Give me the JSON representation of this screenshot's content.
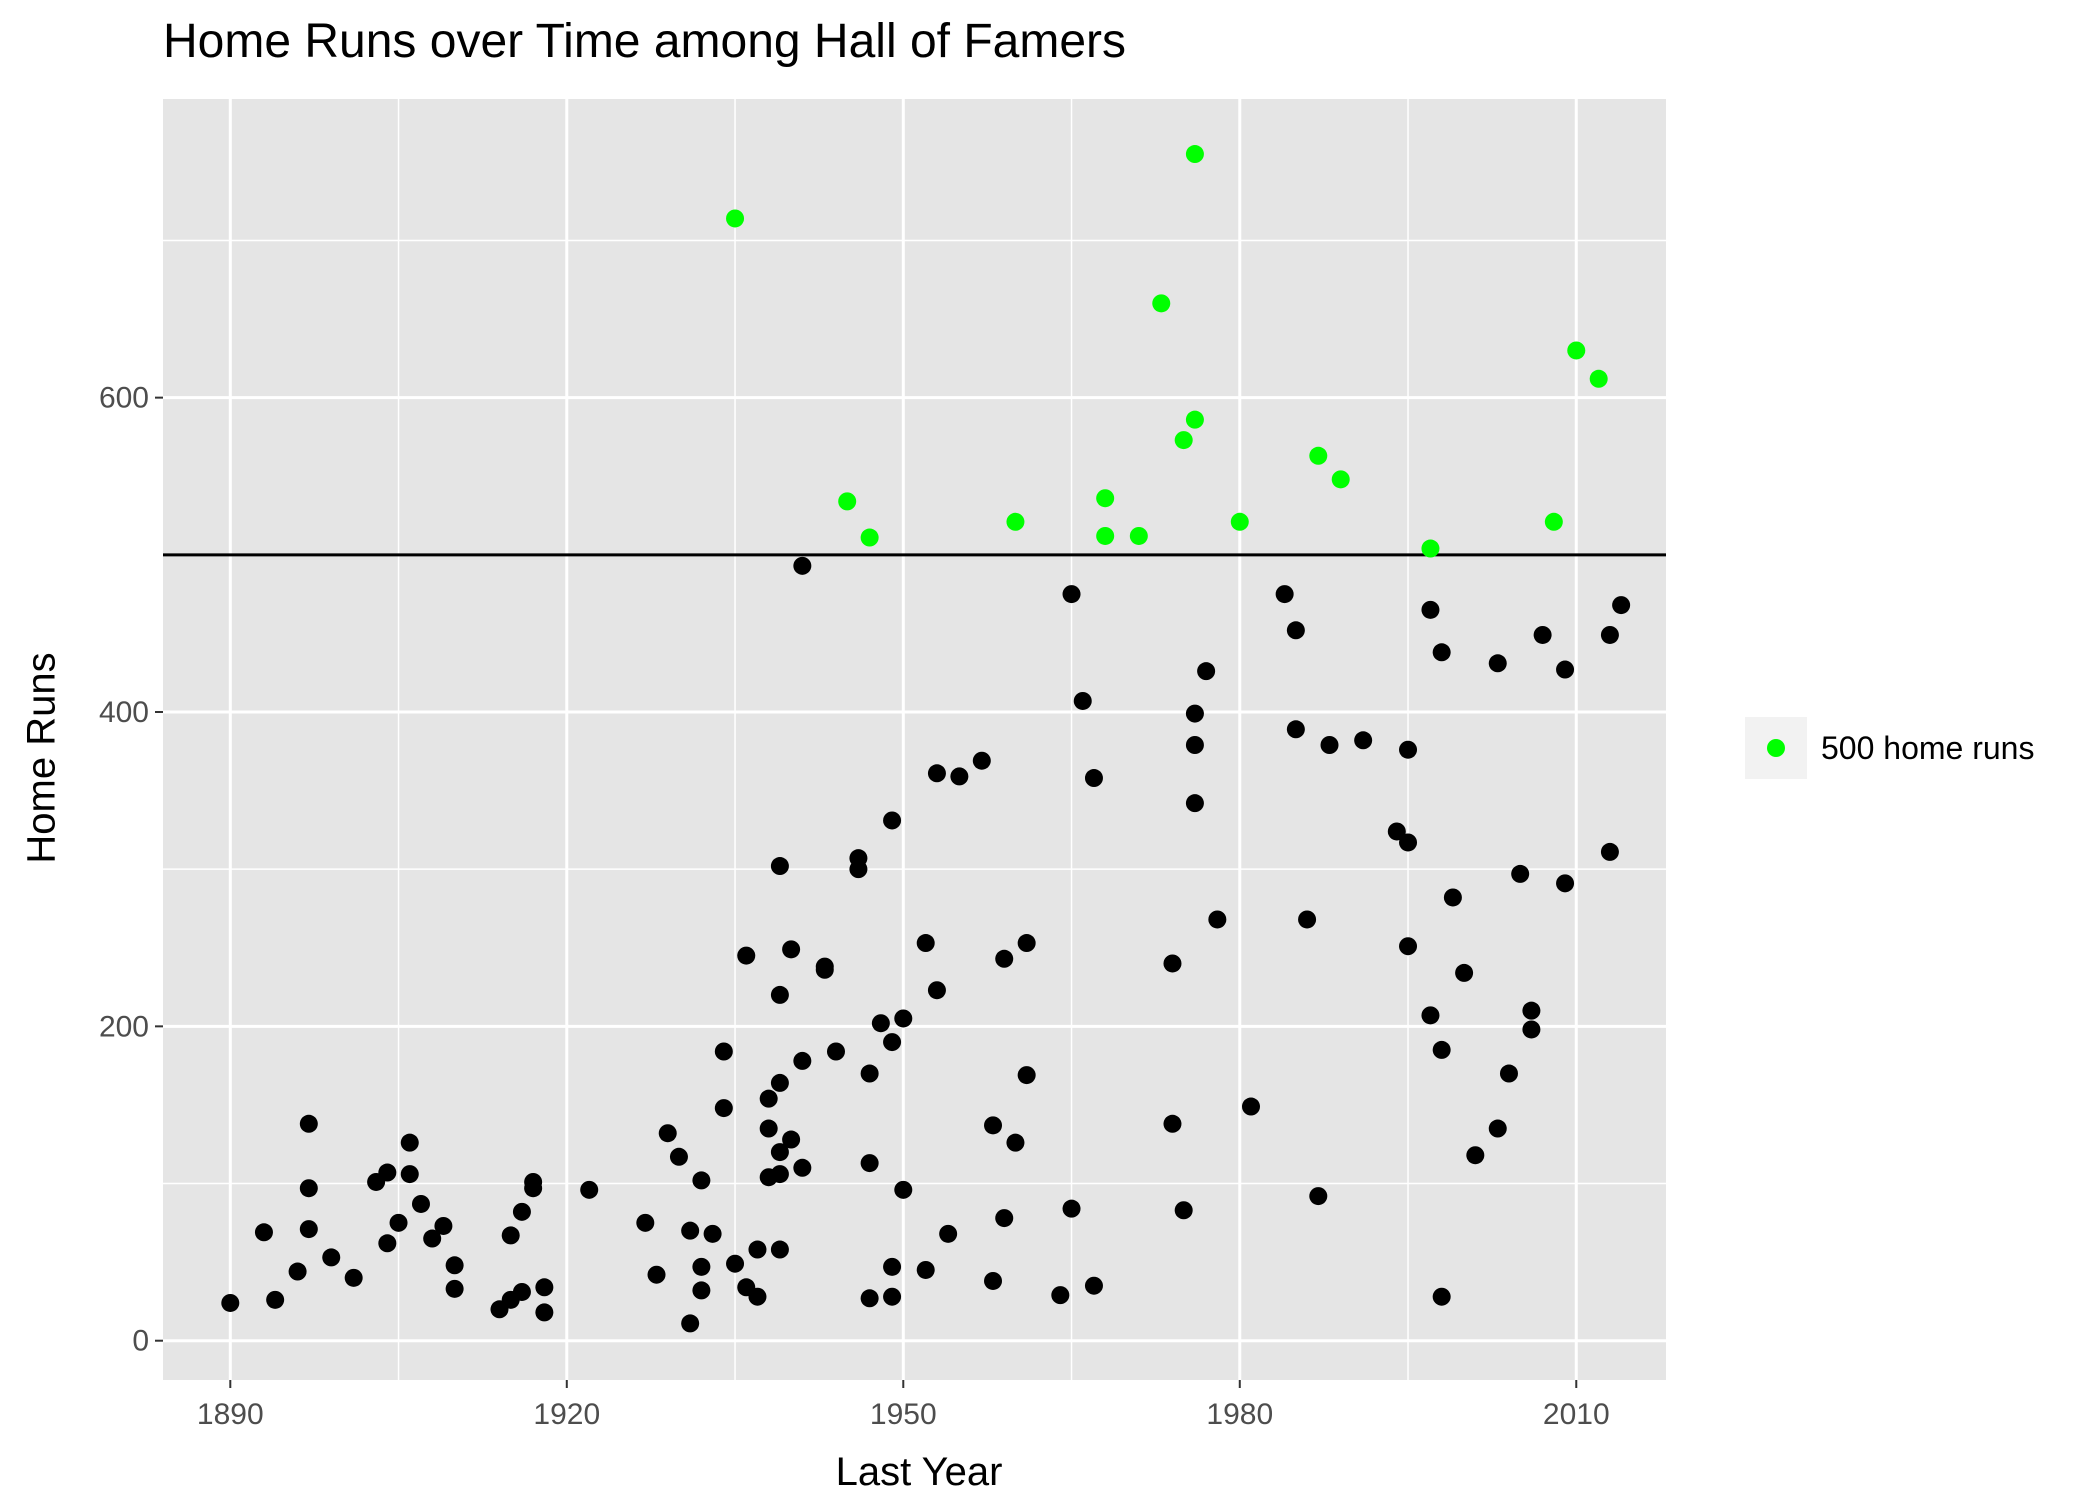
{
  "chart_data": {
    "type": "scatter",
    "title": "Home Runs over Time among Hall of Famers",
    "xlabel": "Last Year",
    "ylabel": "Home Runs",
    "xlim": [
      1884,
      2018
    ],
    "ylim": [
      -25,
      790
    ],
    "x_ticks": [
      1890,
      1920,
      1950,
      1980,
      2010
    ],
    "y_ticks": [
      0,
      200,
      400,
      600
    ],
    "grid": true,
    "reference_line": {
      "y": 500
    },
    "legend": {
      "position": "right",
      "entries": [
        {
          "label": "500 home runs",
          "color": "#00ff00"
        }
      ]
    },
    "colors": {
      "panel": "#e5e5e5",
      "grid": "#ffffff",
      "point": "#000000",
      "highlight": "#00ff00"
    },
    "series": [
      {
        "name": "500 home runs",
        "color": "#00ff00",
        "points": [
          [
            1935,
            714
          ],
          [
            1976,
            755
          ],
          [
            1973,
            660
          ],
          [
            2010,
            630
          ],
          [
            2012,
            612
          ],
          [
            1976,
            586
          ],
          [
            1975,
            573
          ],
          [
            1987,
            563
          ],
          [
            1989,
            548
          ],
          [
            1945,
            534
          ],
          [
            1968,
            536
          ],
          [
            1947,
            511
          ],
          [
            1960,
            521
          ],
          [
            1968,
            512
          ],
          [
            1971,
            512
          ],
          [
            1980,
            521
          ],
          [
            2008,
            521
          ],
          [
            1997,
            504
          ]
        ]
      },
      {
        "name": "",
        "color": "#000000",
        "points": [
          [
            1890,
            24
          ],
          [
            1893,
            69
          ],
          [
            1894,
            26
          ],
          [
            1896,
            44
          ],
          [
            1897,
            138
          ],
          [
            1897,
            97
          ],
          [
            1897,
            71
          ],
          [
            1899,
            53
          ],
          [
            1901,
            40
          ],
          [
            1903,
            101
          ],
          [
            1904,
            107
          ],
          [
            1904,
            62
          ],
          [
            1905,
            75
          ],
          [
            1906,
            126
          ],
          [
            1906,
            106
          ],
          [
            1907,
            87
          ],
          [
            1908,
            65
          ],
          [
            1909,
            73
          ],
          [
            1910,
            48
          ],
          [
            1910,
            33
          ],
          [
            1914,
            20
          ],
          [
            1915,
            26
          ],
          [
            1915,
            67
          ],
          [
            1916,
            82
          ],
          [
            1916,
            31
          ],
          [
            1917,
            101
          ],
          [
            1917,
            97
          ],
          [
            1918,
            34
          ],
          [
            1918,
            18
          ],
          [
            1922,
            96
          ],
          [
            1927,
            75
          ],
          [
            1928,
            42
          ],
          [
            1929,
            132
          ],
          [
            1930,
            117
          ],
          [
            1931,
            70
          ],
          [
            1931,
            11
          ],
          [
            1932,
            102
          ],
          [
            1932,
            47
          ],
          [
            1932,
            32
          ],
          [
            1933,
            68
          ],
          [
            1934,
            184
          ],
          [
            1934,
            148
          ],
          [
            1935,
            49
          ],
          [
            1936,
            245
          ],
          [
            1936,
            34
          ],
          [
            1937,
            58
          ],
          [
            1937,
            28
          ],
          [
            1938,
            154
          ],
          [
            1938,
            135
          ],
          [
            1938,
            104
          ],
          [
            1939,
            302
          ],
          [
            1939,
            220
          ],
          [
            1939,
            164
          ],
          [
            1939,
            120
          ],
          [
            1939,
            106
          ],
          [
            1939,
            58
          ],
          [
            1940,
            249
          ],
          [
            1940,
            128
          ],
          [
            1941,
            493
          ],
          [
            1941,
            178
          ],
          [
            1941,
            110
          ],
          [
            1943,
            238
          ],
          [
            1943,
            236
          ],
          [
            1944,
            184
          ],
          [
            1946,
            307
          ],
          [
            1946,
            300
          ],
          [
            1947,
            170
          ],
          [
            1947,
            113
          ],
          [
            1947,
            27
          ],
          [
            1948,
            202
          ],
          [
            1949,
            331
          ],
          [
            1949,
            190
          ],
          [
            1949,
            47
          ],
          [
            1949,
            28
          ],
          [
            1950,
            205
          ],
          [
            1950,
            96
          ],
          [
            1952,
            253
          ],
          [
            1952,
            45
          ],
          [
            1953,
            361
          ],
          [
            1953,
            223
          ],
          [
            1954,
            68
          ],
          [
            1955,
            359
          ],
          [
            1957,
            369
          ],
          [
            1958,
            137
          ],
          [
            1958,
            38
          ],
          [
            1959,
            243
          ],
          [
            1959,
            78
          ],
          [
            1960,
            126
          ],
          [
            1961,
            253
          ],
          [
            1961,
            169
          ],
          [
            1964,
            29
          ],
          [
            1965,
            475
          ],
          [
            1965,
            84
          ],
          [
            1966,
            407
          ],
          [
            1967,
            358
          ],
          [
            1967,
            35
          ],
          [
            1974,
            240
          ],
          [
            1974,
            138
          ],
          [
            1975,
            83
          ],
          [
            1976,
            399
          ],
          [
            1976,
            379
          ],
          [
            1976,
            342
          ],
          [
            1977,
            426
          ],
          [
            1978,
            268
          ],
          [
            1981,
            149
          ],
          [
            1984,
            475
          ],
          [
            1985,
            452
          ],
          [
            1985,
            389
          ],
          [
            1986,
            268
          ],
          [
            1987,
            92
          ],
          [
            1988,
            379
          ],
          [
            1991,
            382
          ],
          [
            1994,
            324
          ],
          [
            1995,
            376
          ],
          [
            1995,
            317
          ],
          [
            1995,
            251
          ],
          [
            1997,
            465
          ],
          [
            1997,
            207
          ],
          [
            1998,
            438
          ],
          [
            1998,
            185
          ],
          [
            1998,
            28
          ],
          [
            1999,
            282
          ],
          [
            2000,
            234
          ],
          [
            2001,
            118
          ],
          [
            2003,
            431
          ],
          [
            2003,
            135
          ],
          [
            2004,
            170
          ],
          [
            2005,
            297
          ],
          [
            2006,
            210
          ],
          [
            2006,
            198
          ],
          [
            2007,
            449
          ],
          [
            2009,
            427
          ],
          [
            2009,
            291
          ],
          [
            2013,
            449
          ],
          [
            2013,
            311
          ],
          [
            2014,
            468
          ]
        ]
      }
    ]
  }
}
